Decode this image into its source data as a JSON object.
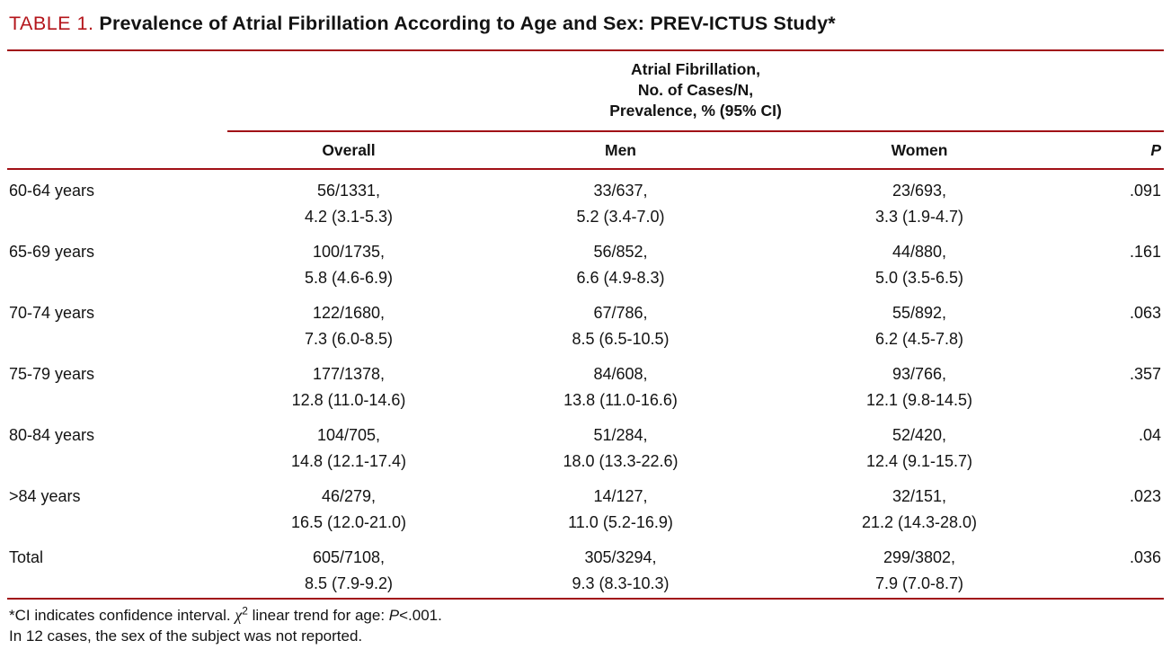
{
  "colors": {
    "accent_red": "#b4151b",
    "rule_red": "#a11016"
  },
  "title": {
    "label": "TABLE 1.",
    "text": "Prevalence of Atrial Fibrillation According to Age and Sex: PREV-ICTUS Study*"
  },
  "table": {
    "span_header_lines": [
      "Atrial Fibrillation,",
      "No. of Cases/N,",
      "Prevalence, % (95% CI)"
    ],
    "columns": {
      "age": "",
      "overall": "Overall",
      "men": "Men",
      "women": "Women",
      "p": "P"
    },
    "rows": [
      {
        "age": "60-64 years",
        "overall": [
          "56/1331,",
          "4.2 (3.1-5.3)"
        ],
        "men": [
          "33/637,",
          "5.2 (3.4-7.0)"
        ],
        "women": [
          "23/693,",
          "3.3 (1.9-4.7)"
        ],
        "p": ".091"
      },
      {
        "age": "65-69 years",
        "overall": [
          "100/1735,",
          "5.8 (4.6-6.9)"
        ],
        "men": [
          "56/852,",
          "6.6 (4.9-8.3)"
        ],
        "women": [
          "44/880,",
          "5.0 (3.5-6.5)"
        ],
        "p": ".161"
      },
      {
        "age": "70-74 years",
        "overall": [
          "122/1680,",
          "7.3 (6.0-8.5)"
        ],
        "men": [
          "67/786,",
          "8.5 (6.5-10.5)"
        ],
        "women": [
          "55/892,",
          "6.2 (4.5-7.8)"
        ],
        "p": ".063"
      },
      {
        "age": "75-79 years",
        "overall": [
          "177/1378,",
          "12.8 (11.0-14.6)"
        ],
        "men": [
          "84/608,",
          "13.8 (11.0-16.6)"
        ],
        "women": [
          "93/766,",
          "12.1 (9.8-14.5)"
        ],
        "p": ".357"
      },
      {
        "age": "80-84 years",
        "overall": [
          "104/705,",
          "14.8 (12.1-17.4)"
        ],
        "men": [
          "51/284,",
          "18.0 (13.3-22.6)"
        ],
        "women": [
          "52/420,",
          "12.4 (9.1-15.7)"
        ],
        "p": ".04"
      },
      {
        "age": ">84 years",
        "overall": [
          "46/279,",
          "16.5 (12.0-21.0)"
        ],
        "men": [
          "14/127,",
          "11.0 (5.2-16.9)"
        ],
        "women": [
          "32/151,",
          "21.2 (14.3-28.0)"
        ],
        "p": ".023"
      },
      {
        "age": "Total",
        "overall": [
          "605/7108,",
          "8.5 (7.9-9.2)"
        ],
        "men": [
          "305/3294,",
          "9.3 (8.3-10.3)"
        ],
        "women": [
          "299/3802,",
          "7.9 (7.0-8.7)"
        ],
        "p": ".036"
      }
    ]
  },
  "footnotes": {
    "line1": {
      "part1": "*CI indicates confidence interval. ",
      "chi": "χ",
      "sup": "2",
      "part2": " linear trend for age: ",
      "p_italic": "P",
      "part3": "<.001."
    },
    "line2": "In 12 cases, the sex of the subject was not reported."
  }
}
